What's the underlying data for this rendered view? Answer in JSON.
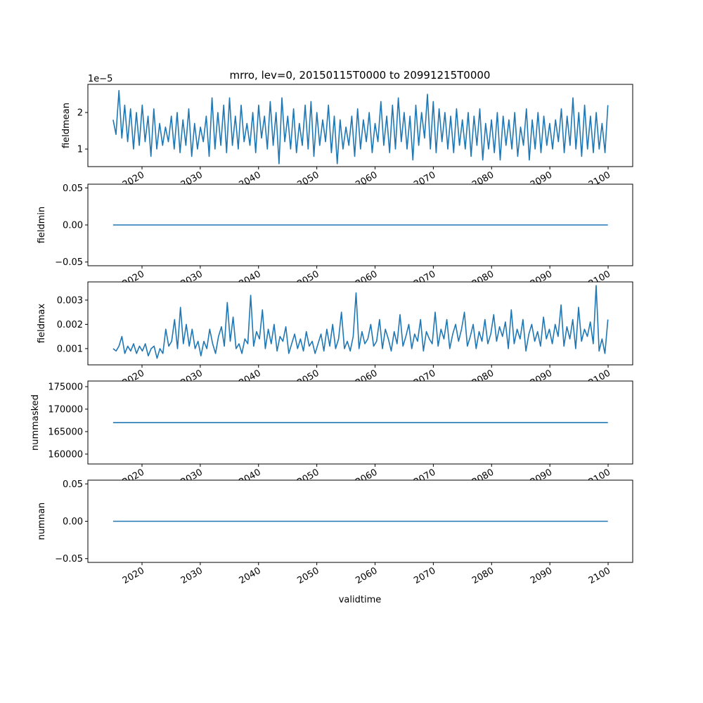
{
  "chart_data": {
    "type": "line",
    "title": "mrro, lev=0, 20150115T0000 to 20991215T0000",
    "xlabel": "validtime",
    "xlim": [
      2010.71,
      2104.22
    ],
    "x_ticks": [
      2020,
      2030,
      2040,
      2050,
      2060,
      2070,
      2080,
      2090,
      2100
    ],
    "x_tick_labels": [
      "2020",
      "2030",
      "2040",
      "2050",
      "2060",
      "2070",
      "2080",
      "2090",
      "2100"
    ],
    "x_range": [
      2015.04,
      2099.96
    ],
    "line_color": "#1f77b4",
    "panels": [
      {
        "ylabel": "fieldmean",
        "offset_text": "1e−5",
        "scale": 1e-05,
        "ylim": [
          0.52,
          2.77
        ],
        "y_ticks": [
          1,
          2
        ],
        "y_tick_labels": [
          "1",
          "2"
        ],
        "values": [
          1.8,
          1.4,
          2.6,
          1.3,
          2.2,
          1.2,
          2.1,
          1.0,
          2.0,
          1.1,
          2.2,
          1.2,
          1.9,
          0.8,
          2.1,
          1.0,
          1.7,
          1.1,
          1.6,
          1.2,
          1.9,
          1.0,
          2.0,
          0.9,
          1.8,
          1.1,
          2.1,
          0.8,
          1.7,
          1.0,
          1.6,
          1.2,
          1.9,
          0.8,
          2.4,
          1.0,
          2.0,
          1.1,
          2.2,
          0.9,
          2.4,
          1.1,
          1.9,
          1.0,
          2.2,
          1.2,
          1.7,
          1.1,
          2.0,
          0.9,
          2.2,
          1.3,
          1.9,
          1.0,
          2.3,
          1.1,
          2.0,
          0.6,
          2.4,
          1.2,
          1.9,
          1.0,
          2.1,
          0.9,
          1.7,
          1.1,
          2.2,
          1.0,
          2.3,
          0.8,
          2.0,
          1.1,
          1.8,
          1.2,
          2.2,
          0.9,
          1.9,
          0.6,
          1.8,
          1.0,
          1.6,
          1.1,
          1.9,
          0.8,
          2.1,
          1.0,
          1.8,
          1.2,
          2.0,
          0.9,
          1.7,
          1.2,
          2.3,
          1.1,
          1.9,
          0.9,
          2.2,
          1.0,
          2.4,
          1.2,
          2.0,
          1.0,
          1.9,
          0.7,
          2.2,
          1.1,
          2.0,
          1.3,
          2.5,
          1.0,
          2.3,
          0.9,
          2.1,
          1.2,
          2.0,
          1.0,
          1.9,
          0.9,
          2.1,
          1.1,
          1.8,
          1.0,
          2.0,
          0.8,
          1.9,
          1.1,
          2.1,
          0.7,
          1.7,
          1.0,
          1.8,
          0.9,
          2.0,
          0.7,
          1.9,
          1.1,
          1.8,
          1.0,
          2.0,
          0.8,
          1.6,
          1.1,
          2.1,
          0.7,
          1.8,
          1.0,
          2.0,
          0.9,
          1.9,
          1.1,
          1.7,
          1.0,
          1.8,
          1.2,
          2.1,
          0.9,
          1.9,
          1.1,
          2.4,
          1.0,
          2.0,
          0.8,
          2.2,
          1.0,
          1.9,
          0.9,
          2.0,
          1.0,
          1.7,
          0.9,
          2.2
        ]
      },
      {
        "ylabel": "fieldmin",
        "ylim": [
          -0.055,
          0.055
        ],
        "y_ticks": [
          -0.05,
          0,
          0.05
        ],
        "y_tick_labels": [
          "−0.05",
          "0.00",
          "0.05"
        ],
        "constant": 0
      },
      {
        "ylabel": "fieldmax",
        "scale": 0.001,
        "ylim": [
          0.33,
          3.75
        ],
        "y_ticks": [
          1,
          2,
          3
        ],
        "y_tick_labels": [
          "0.001",
          "0.002",
          "0.003"
        ],
        "values": [
          1.0,
          0.9,
          1.1,
          1.5,
          0.8,
          1.1,
          0.9,
          1.2,
          0.8,
          1.1,
          0.9,
          1.2,
          0.7,
          1.0,
          1.1,
          0.6,
          1.0,
          0.8,
          1.8,
          1.1,
          1.3,
          2.2,
          1.0,
          2.7,
          1.2,
          2.0,
          1.1,
          1.8,
          1.0,
          1.3,
          0.7,
          1.3,
          1.0,
          1.8,
          1.2,
          0.8,
          1.5,
          1.9,
          1.1,
          2.9,
          1.3,
          2.3,
          1.0,
          1.2,
          0.8,
          1.4,
          1.2,
          3.2,
          1.1,
          1.7,
          1.4,
          2.6,
          1.0,
          1.8,
          1.2,
          2.0,
          0.9,
          1.5,
          1.3,
          1.9,
          0.8,
          1.2,
          1.6,
          1.0,
          1.4,
          0.9,
          1.7,
          1.1,
          1.3,
          0.8,
          1.2,
          1.6,
          0.9,
          1.8,
          1.1,
          2.0,
          1.0,
          1.4,
          2.5,
          1.0,
          1.3,
          0.9,
          1.5,
          3.3,
          1.0,
          1.7,
          1.2,
          1.4,
          2.0,
          1.1,
          1.3,
          2.2,
          1.0,
          1.8,
          1.4,
          0.9,
          1.7,
          1.2,
          2.4,
          1.1,
          1.5,
          2.0,
          1.0,
          1.6,
          1.3,
          2.2,
          0.9,
          1.7,
          1.4,
          1.2,
          2.5,
          1.1,
          1.8,
          1.4,
          2.2,
          1.0,
          1.6,
          2.0,
          1.3,
          1.8,
          2.5,
          1.1,
          1.5,
          2.0,
          1.0,
          1.7,
          1.3,
          2.2,
          1.2,
          1.6,
          2.4,
          1.3,
          1.9,
          1.5,
          2.1,
          1.0,
          2.6,
          1.2,
          1.8,
          1.4,
          2.2,
          0.9,
          1.6,
          2.0,
          1.3,
          1.7,
          1.1,
          2.3,
          1.4,
          1.8,
          1.2,
          2.0,
          1.5,
          2.8,
          1.1,
          1.9,
          1.4,
          2.2,
          1.0,
          2.7,
          1.3,
          1.8,
          1.5,
          2.1,
          1.2,
          3.6,
          0.9,
          1.4,
          0.8,
          2.2
        ]
      },
      {
        "ylabel": "nummasked",
        "ylim": [
          157800,
          176250
        ],
        "y_ticks": [
          160000,
          165000,
          170000,
          175000
        ],
        "y_tick_labels": [
          "160000",
          "165000",
          "170000",
          "175000"
        ],
        "constant": 167000
      },
      {
        "ylabel": "numnan",
        "ylim": [
          -0.055,
          0.055
        ],
        "y_ticks": [
          -0.05,
          0,
          0.05
        ],
        "y_tick_labels": [
          "−0.05",
          "0.00",
          "0.05"
        ],
        "constant": 0
      }
    ]
  }
}
